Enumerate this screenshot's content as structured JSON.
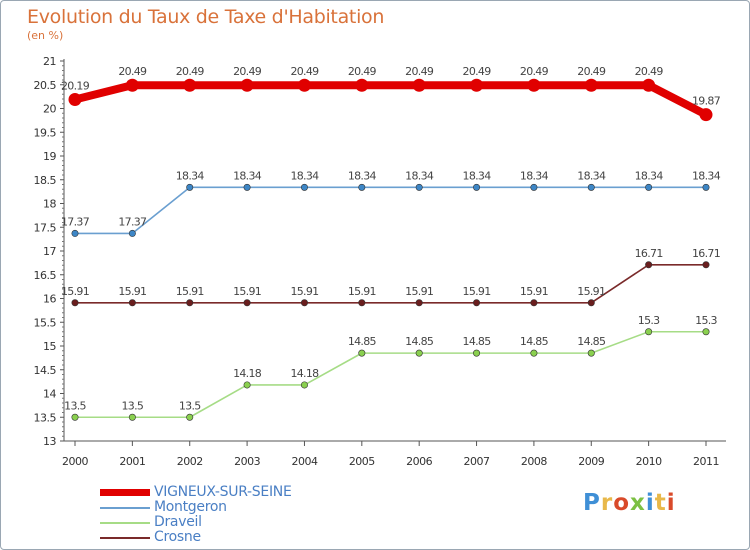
{
  "header": {
    "title": "Evolution du Taux de Taxe d'Habitation",
    "subtitle": "(en %)"
  },
  "brand": {
    "logo_text": "Proxiti",
    "logo_colors": [
      "#3f8fd6",
      "#e8b84a",
      "#d94a2a",
      "#7cc043",
      "#3f8fd6",
      "#e8b84a",
      "#d94a2a"
    ]
  },
  "chart_data": {
    "type": "line",
    "title": "Evolution du Taux de Taxe d'Habitation",
    "ylabel": "(en %)",
    "xlabel": "",
    "x": [
      "2000",
      "2001",
      "2002",
      "2003",
      "2004",
      "2005",
      "2006",
      "2007",
      "2008",
      "2009",
      "2010",
      "2011"
    ],
    "ylim": [
      13,
      21
    ],
    "yticks": [
      "13",
      "13.5",
      "14",
      "14.5",
      "15",
      "15.5",
      "16",
      "16.5",
      "17",
      "17.5",
      "18",
      "18.5",
      "19",
      "19.5",
      "20",
      "20.5",
      "21"
    ],
    "legend_position": "bottom-left",
    "series": [
      {
        "name": "VIGNEUX-SUR-SEINE",
        "color": "#e00000",
        "emphasis": true,
        "values": [
          20.19,
          20.49,
          20.49,
          20.49,
          20.49,
          20.49,
          20.49,
          20.49,
          20.49,
          20.49,
          20.49,
          19.87
        ],
        "labels": [
          "20.19",
          "20.49",
          "20.49",
          "20.49",
          "20.49",
          "20.49",
          "20.49",
          "20.49",
          "20.49",
          "20.49",
          "20.49",
          "19.87"
        ]
      },
      {
        "name": "Montgeron",
        "color": "#6a9fd0",
        "marker": "#3d86c6",
        "values": [
          17.37,
          17.37,
          18.34,
          18.34,
          18.34,
          18.34,
          18.34,
          18.34,
          18.34,
          18.34,
          18.34,
          18.34
        ],
        "labels": [
          "17.37",
          "17.37",
          "18.34",
          "18.34",
          "18.34",
          "18.34",
          "18.34",
          "18.34",
          "18.34",
          "18.34",
          "18.34",
          "18.34"
        ]
      },
      {
        "name": "Draveil",
        "color": "#a6dc86",
        "marker": "#8ad04f",
        "values": [
          13.5,
          13.5,
          13.5,
          14.18,
          14.18,
          14.85,
          14.85,
          14.85,
          14.85,
          14.85,
          15.3,
          15.3
        ],
        "labels": [
          "13.5",
          "13.5",
          "13.5",
          "14.18",
          "14.18",
          "14.85",
          "14.85",
          "14.85",
          "14.85",
          "14.85",
          "15.3",
          "15.3"
        ]
      },
      {
        "name": "Crosne",
        "color": "#7a2a2a",
        "marker": "#6a1e1e",
        "values": [
          15.91,
          15.91,
          15.91,
          15.91,
          15.91,
          15.91,
          15.91,
          15.91,
          15.91,
          15.91,
          16.71,
          16.71
        ],
        "labels": [
          "15.91",
          "15.91",
          "15.91",
          "15.91",
          "15.91",
          "15.91",
          "15.91",
          "15.91",
          "15.91",
          "15.91",
          "16.71",
          "16.71"
        ]
      }
    ]
  }
}
